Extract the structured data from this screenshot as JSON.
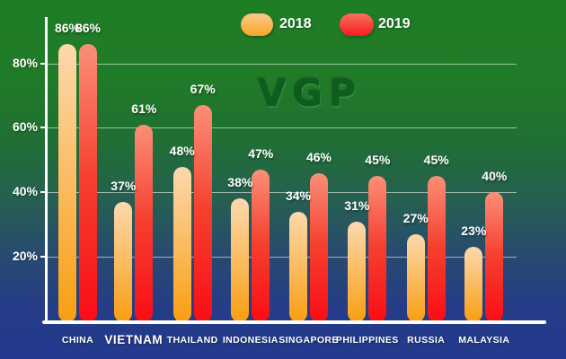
{
  "chart_data": {
    "type": "bar",
    "title": "",
    "categories": [
      "CHINA",
      "VIETNAM",
      "THAILAND",
      "INDONESIA",
      "SINGAPORE",
      "PHILIPPINES",
      "RUSSIA",
      "MALAYSIA"
    ],
    "series": [
      {
        "name": "2018",
        "values": [
          86,
          37,
          48,
          38,
          34,
          31,
          27,
          23
        ]
      },
      {
        "name": "2019",
        "values": [
          86,
          61,
          67,
          47,
          46,
          45,
          45,
          40
        ]
      }
    ],
    "value_labels": [
      [
        "86%",
        "37%",
        "48%",
        "38%",
        "34%",
        "31%",
        "27%",
        "23%"
      ],
      [
        "86%",
        "61%",
        "67%",
        "47%",
        "46%",
        "45%",
        "45%",
        "40%"
      ]
    ],
    "value_label_suffix": "%",
    "y_ticks": [
      {
        "label": "20%",
        "value": 20
      },
      {
        "label": "40%",
        "value": 40
      },
      {
        "label": "60%",
        "value": 60
      },
      {
        "label": "80%",
        "value": 80
      }
    ],
    "ylim": [
      0,
      100
    ],
    "grid": true,
    "legend_position": "top-center",
    "watermark": "VGP",
    "emphasized_category": "VIETNAM"
  },
  "palette": {
    "background_top": "#1f7d26",
    "background_bottom": "#233a8e",
    "bar_2018_top": "#fdd8ae",
    "bar_2018_bottom": "#f99e10",
    "bar_2019_top": "#fb8f78",
    "bar_2019_bottom": "#f90d15",
    "axis": "#ffffff",
    "gridline": "rgba(255,255,255,0.55)",
    "text": "#ffffff",
    "watermark_color": "#0d5a1d"
  }
}
